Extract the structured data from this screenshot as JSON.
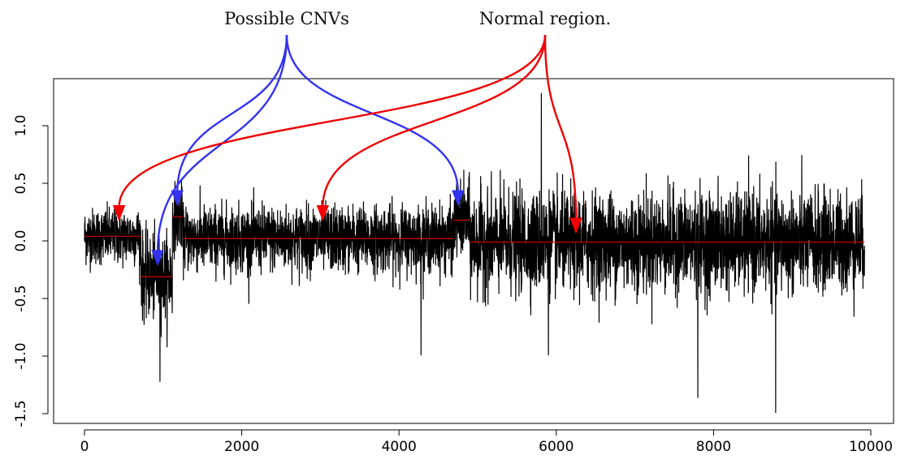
{
  "chart_data": {
    "type": "line",
    "title": "",
    "xlabel": "",
    "ylabel": "",
    "xlim": [
      0,
      10000
    ],
    "ylim": [
      -1.5,
      1.3
    ],
    "x_ticks": [
      "0",
      "2000",
      "4000",
      "6000",
      "8000",
      "10000"
    ],
    "y_ticks": [
      "-1.5",
      "-1.0",
      "-0.5",
      "0.0",
      "0.5",
      "1.0"
    ],
    "grid": false,
    "legend": "none",
    "n_points": 9920,
    "series": [
      {
        "role": "signal",
        "color": "#000000",
        "segments": [
          {
            "x_start": 0,
            "x_end": 720,
            "level": 0.04,
            "noise_sd": 0.12
          },
          {
            "x_start": 720,
            "x_end": 1120,
            "level": -0.31,
            "noise_sd": 0.18
          },
          {
            "x_start": 1120,
            "x_end": 1250,
            "level": 0.21,
            "noise_sd": 0.14
          },
          {
            "x_start": 1250,
            "x_end": 4700,
            "level": 0.02,
            "noise_sd": 0.14
          },
          {
            "x_start": 4700,
            "x_end": 4900,
            "level": 0.18,
            "noise_sd": 0.16
          },
          {
            "x_start": 4900,
            "x_end": 9920,
            "level": -0.01,
            "noise_sd": 0.21
          }
        ],
        "extremes": [
          {
            "x": 960,
            "y": -1.22
          },
          {
            "x": 4280,
            "y": -0.99
          },
          {
            "x": 5810,
            "y": 1.28
          },
          {
            "x": 5900,
            "y": -0.99
          },
          {
            "x": 7800,
            "y": -1.36
          },
          {
            "x": 8790,
            "y": -1.49
          }
        ]
      },
      {
        "role": "segment-means",
        "color": "#d40000",
        "segments": [
          {
            "x_start": 0,
            "x_end": 720,
            "y": 0.04
          },
          {
            "x_start": 720,
            "x_end": 1120,
            "y": -0.31
          },
          {
            "x_start": 1120,
            "x_end": 1250,
            "y": 0.21
          },
          {
            "x_start": 1250,
            "x_end": 4700,
            "y": 0.02
          },
          {
            "x_start": 4700,
            "x_end": 4900,
            "y": 0.18
          },
          {
            "x_start": 4900,
            "x_end": 9920,
            "y": -0.01
          }
        ]
      }
    ],
    "annotations": [
      {
        "text": "Possible CNVs",
        "color": "#3333ee",
        "targets": [
          {
            "x": 930,
            "y": -0.21
          },
          {
            "x": 1180,
            "y": 0.31
          },
          {
            "x": 4750,
            "y": 0.31
          }
        ]
      },
      {
        "text": "Normal region.",
        "color": "#ee0000",
        "targets": [
          {
            "x": 440,
            "y": 0.18
          },
          {
            "x": 3030,
            "y": 0.18
          },
          {
            "x": 6250,
            "y": 0.07
          }
        ]
      }
    ]
  }
}
